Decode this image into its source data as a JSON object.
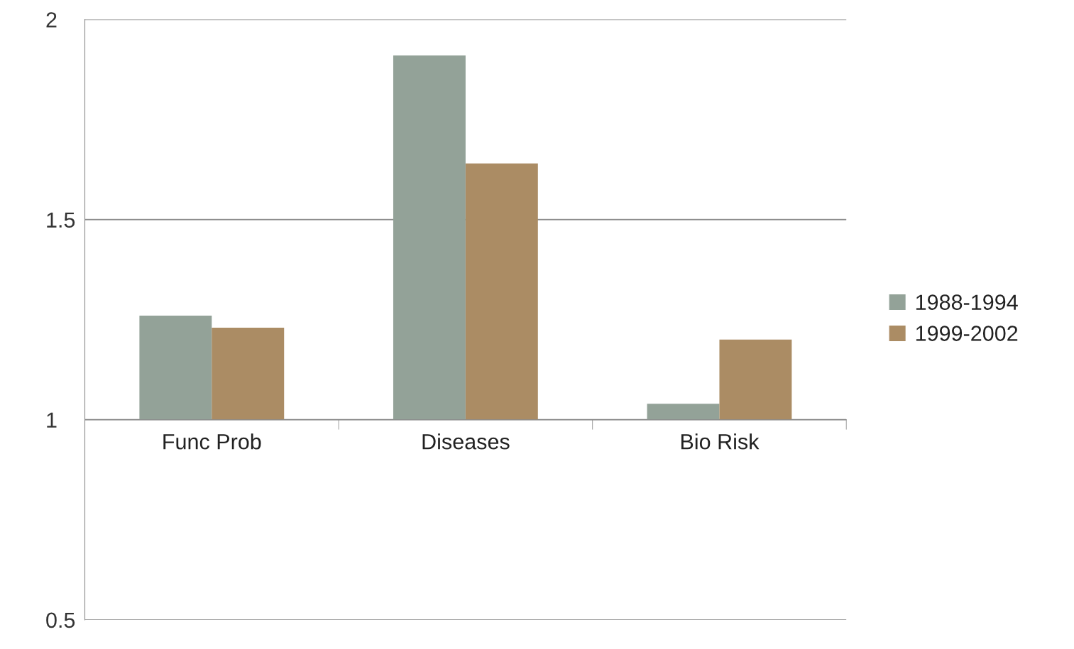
{
  "chart_data": {
    "type": "bar",
    "categories": [
      "Func Prob",
      "Diseases",
      "Bio Risk"
    ],
    "series": [
      {
        "name": "1988-1994",
        "color": "#93a298",
        "base": [
          1,
          1,
          1
        ],
        "values": [
          0.26,
          0.91,
          0.04
        ]
      },
      {
        "name": "1999-2002",
        "color": "#ab8c64",
        "base": [
          1,
          1,
          1
        ],
        "values": [
          0.23,
          0.64,
          0.2
        ]
      }
    ],
    "ylim": [
      0.5,
      2
    ],
    "yticks": [
      0.5,
      1,
      1.5,
      2
    ],
    "grid": "y",
    "legend": "right"
  }
}
